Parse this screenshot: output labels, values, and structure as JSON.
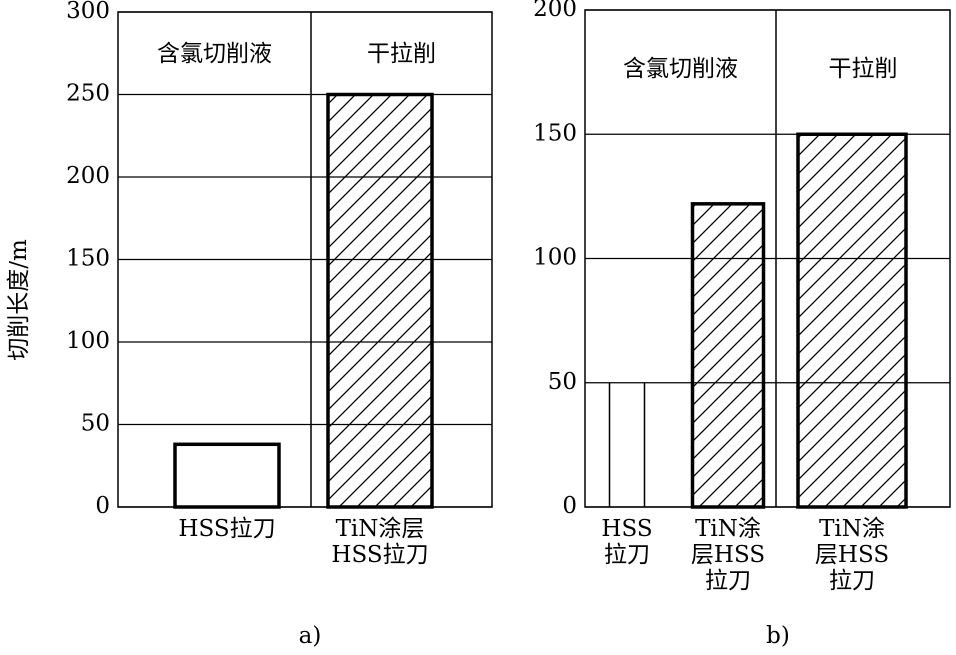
{
  "chart_data": [
    {
      "type": "bar",
      "title": "a)",
      "y_label": "切削长度/m",
      "annotations": [
        "含氯切削液",
        "干拉削"
      ],
      "categories": [
        "HSS拉刀",
        "TiN涂层\nHSS拉刀"
      ],
      "values": [
        38,
        250
      ],
      "bar_styles": [
        "outline",
        "hatch"
      ],
      "color": "#000000",
      "ylim": [
        0,
        300
      ],
      "yticks": [
        0,
        50,
        100,
        150,
        200,
        250,
        300
      ],
      "grid": true
    },
    {
      "type": "bar",
      "title": "b)",
      "annotations": [
        "含氯切削液",
        "干拉削"
      ],
      "categories": [
        "HSS\n拉刀",
        "TiN涂\n层HSS\n拉刀",
        "TiN涂\n层HSS\n拉刀"
      ],
      "values": [
        50,
        122,
        150
      ],
      "bar_styles": [
        "thin",
        "hatch",
        "hatch"
      ],
      "color": "#000000",
      "ylim": [
        0,
        200
      ],
      "yticks": [
        0,
        50,
        100,
        150,
        200
      ],
      "grid": true
    }
  ]
}
